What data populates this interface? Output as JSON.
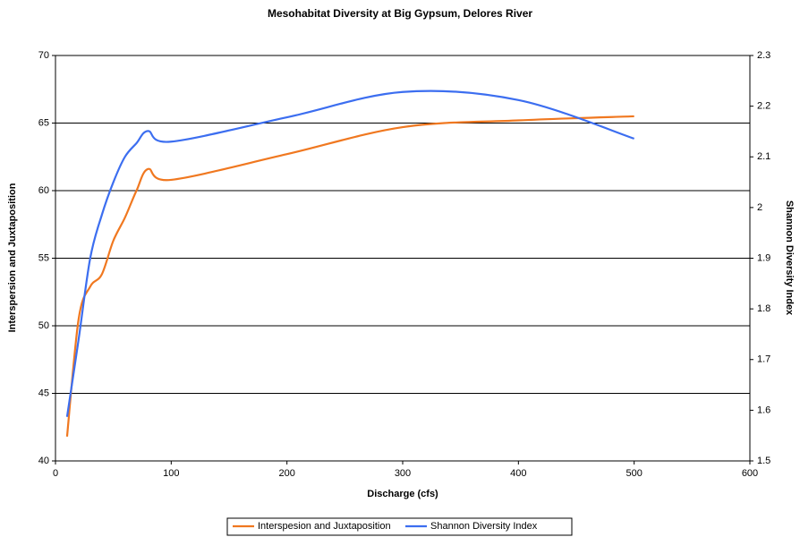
{
  "chart_data": {
    "type": "line",
    "title": "Mesohabitat Diversity at Big Gypsum, Delores River",
    "xlabel": "Discharge (cfs)",
    "ylabel": "Interspersion and Juxtaposition",
    "y2label": "Shannon Diversity Index",
    "x": [
      10,
      20,
      30,
      40,
      50,
      60,
      70,
      80,
      100,
      200,
      300,
      400,
      500
    ],
    "series": [
      {
        "name": "Interspesion and Juxtaposition",
        "color": "#f07820",
        "values": [
          41.8,
          50.5,
          52.9,
          53.8,
          56.3,
          58.0,
          60.0,
          61.6,
          60.8,
          62.7,
          64.7,
          65.2,
          65.5
        ]
      },
      {
        "name": "Shannon Diversity Index",
        "color": "#3c6ef0",
        "axis": "y2",
        "values": [
          1.587,
          1.74,
          1.9,
          1.985,
          2.05,
          2.1,
          2.127,
          2.151,
          2.13,
          2.178,
          2.228,
          2.212,
          2.136
        ]
      }
    ],
    "xlim": [
      0,
      600
    ],
    "xticks": [
      0,
      100,
      200,
      300,
      400,
      500,
      600
    ],
    "ylim": [
      40,
      70
    ],
    "yticks": [
      40,
      45,
      50,
      55,
      60,
      65,
      70
    ],
    "y2lim": [
      1.5,
      2.3
    ],
    "y2ticks": [
      1.5,
      1.6,
      1.7,
      1.8,
      1.9,
      2,
      2.1,
      2.2,
      2.3
    ],
    "grid": true,
    "legend": "bottom"
  }
}
